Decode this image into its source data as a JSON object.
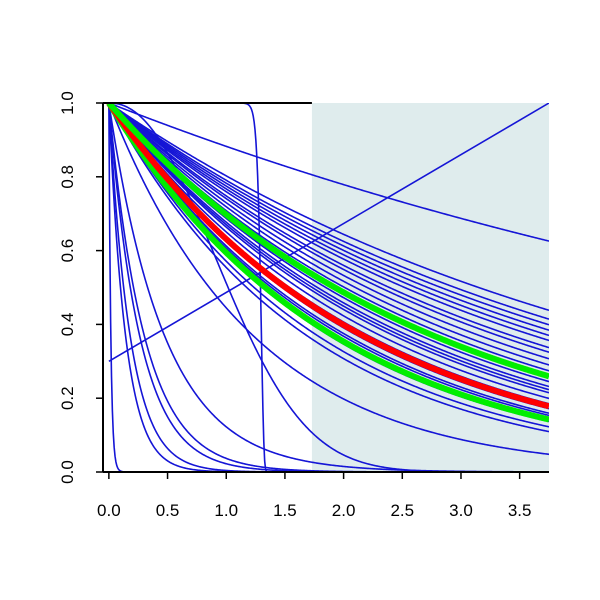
{
  "chart_data": {
    "type": "line",
    "xlim": [
      -0.05,
      3.75
    ],
    "ylim": [
      0.0,
      1.0
    ],
    "x_ticks": [
      0.0,
      0.5,
      1.0,
      1.5,
      2.0,
      2.5,
      3.0,
      3.5
    ],
    "x_tick_labels": [
      "0.0",
      "0.5",
      "1.0",
      "1.5",
      "2.0",
      "2.5",
      "3.0",
      "3.5"
    ],
    "y_ticks": [
      0.0,
      0.2,
      0.4,
      0.6,
      0.8,
      1.0
    ],
    "y_tick_labels": [
      "0.0",
      "0.2",
      "0.4",
      "0.6",
      "0.8",
      "1.0"
    ],
    "shaded_region": {
      "x_from": 1.73,
      "x_to": 3.75,
      "color": "#dfeced"
    },
    "colors": {
      "blue": "#1515d6",
      "red": "#ff0000",
      "green": "#00ee00"
    },
    "series": [
      {
        "kind": "exp",
        "rate": 0.125,
        "color": "blue"
      },
      {
        "kind": "exp",
        "rate": 0.22,
        "color": "blue"
      },
      {
        "kind": "exp",
        "rate": 0.235,
        "color": "blue"
      },
      {
        "kind": "exp",
        "rate": 0.245,
        "color": "blue"
      },
      {
        "kind": "exp",
        "rate": 0.255,
        "color": "blue"
      },
      {
        "kind": "exp",
        "rate": 0.265,
        "color": "blue"
      },
      {
        "kind": "exp",
        "rate": 0.275,
        "color": "blue"
      },
      {
        "kind": "exp",
        "rate": 0.29,
        "color": "blue"
      },
      {
        "kind": "exp",
        "rate": 0.3,
        "color": "blue"
      },
      {
        "kind": "exp",
        "rate": 0.315,
        "color": "blue"
      },
      {
        "kind": "exp",
        "rate": 0.33,
        "color": "blue"
      },
      {
        "kind": "exp",
        "rate": 0.345,
        "color": "blue"
      },
      {
        "kind": "exp",
        "rate": 0.36,
        "color": "blue"
      },
      {
        "kind": "exp",
        "rate": 0.375,
        "color": "blue"
      },
      {
        "kind": "exp",
        "rate": 0.39,
        "color": "blue"
      },
      {
        "kind": "exp",
        "rate": 0.4,
        "color": "blue"
      },
      {
        "kind": "exp",
        "rate": 0.41,
        "color": "blue"
      },
      {
        "kind": "exp",
        "rate": 0.43,
        "color": "blue"
      },
      {
        "kind": "exp",
        "rate": 0.45,
        "color": "blue"
      },
      {
        "kind": "exp",
        "rate": 0.47,
        "color": "blue"
      },
      {
        "kind": "exp",
        "rate": 0.49,
        "color": "blue"
      },
      {
        "kind": "exp",
        "rate": 0.5,
        "color": "blue"
      },
      {
        "kind": "exp",
        "rate": 0.53,
        "color": "blue"
      },
      {
        "kind": "exp",
        "rate": 0.56,
        "color": "blue"
      },
      {
        "kind": "exp",
        "rate": 0.59,
        "color": "blue"
      },
      {
        "kind": "exp",
        "rate": 0.81,
        "color": "blue"
      },
      {
        "kind": "exp",
        "rate": 2.1,
        "color": "blue"
      },
      {
        "kind": "exp",
        "rate": 3.3,
        "color": "blue"
      },
      {
        "kind": "exp",
        "rate": 3.8,
        "color": "blue"
      },
      {
        "kind": "exp",
        "rate": 5.5,
        "color": "blue"
      },
      {
        "kind": "exp",
        "rate": 7.0,
        "color": "blue"
      },
      {
        "kind": "exp",
        "rate": 60,
        "color": "blue"
      },
      {
        "kind": "weibull",
        "scale": 1.2,
        "shape": 2.2,
        "color": "blue"
      },
      {
        "kind": "weibull",
        "scale": 1.3,
        "shape": 60,
        "color": "blue"
      },
      {
        "kind": "linear",
        "from": [
          0.0,
          0.3
        ],
        "to": [
          3.75,
          1.0
        ],
        "color": "blue"
      },
      {
        "kind": "exp",
        "rate": 0.52,
        "color": "green",
        "width": 6
      },
      {
        "kind": "exp",
        "rate": 0.46,
        "color": "red",
        "width": 6
      },
      {
        "kind": "exp",
        "rate": 0.36,
        "color": "green",
        "width": 6
      }
    ]
  }
}
